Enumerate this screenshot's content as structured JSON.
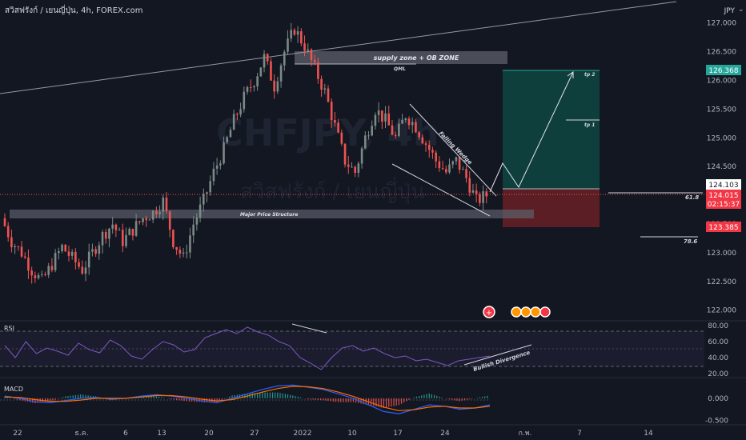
{
  "header": {
    "symbol_line": "สวิสฟรังก์ / เยนญี่ปุ่น, 4h, FOREX.com",
    "currency": "JPY"
  },
  "watermark": {
    "ticker": "CHFJPY, 4h",
    "name": "สวิสฟรังก์ / เยนญี่ปุ่น"
  },
  "annotations": {
    "supply_zone": "supply zone + OB ZONE",
    "qml": "QML",
    "major_structure": "Major Price Structure",
    "falling_wedge": "Falling Wedge",
    "tp2": "tp 2",
    "tp1": "tp 1",
    "fib_618": "61.8",
    "fib_786": "78.6",
    "bullish_divergence": "Bullish Divergence"
  },
  "price_labels": {
    "target": "126.368",
    "entry": "124.103",
    "current": "124.015",
    "countdown": "02:15:37",
    "stop": "123.385"
  },
  "colors": {
    "background": "#131722",
    "bull_candle": "#7a8a86",
    "bear_candle": "#ef5350",
    "target_zone": "#0f3f3c",
    "stop_zone": "#5a1e24",
    "target_label": "#26a69a",
    "stop_label": "#f23645",
    "rsi_line": "#7e57c2",
    "macd_line": "#2962ff",
    "signal_line": "#ff6d00"
  },
  "chart_data": {
    "type": "candlestick",
    "title": "สวิสฟรังก์ / เยนญี่ปุ่น, 4h, FOREX.com",
    "y_ticks": [
      "127.000",
      "126.500",
      "126.000",
      "125.500",
      "125.000",
      "124.500",
      "124.000",
      "123.500",
      "123.000",
      "122.500",
      "122.000"
    ],
    "ylim": [
      121.8,
      127.4
    ],
    "x_ticks": [
      "22",
      "ธ.ค.",
      "6",
      "13",
      "20",
      "27",
      "2022",
      "10",
      "17",
      "24",
      "ก.พ.",
      "7",
      "14"
    ],
    "price_path": [
      123.6,
      123.2,
      123.0,
      122.7,
      122.5,
      122.8,
      123.1,
      122.9,
      122.7,
      123.0,
      123.3,
      123.5,
      123.2,
      123.4,
      123.6,
      123.7,
      123.9,
      123.2,
      122.9,
      123.5,
      123.9,
      124.4,
      124.8,
      125.3,
      125.7,
      126.0,
      126.4,
      125.9,
      126.5,
      126.9,
      126.6,
      126.2,
      125.8,
      125.2,
      124.6,
      124.4,
      125.0,
      125.5,
      125.3,
      125.0,
      125.4,
      125.2,
      124.9,
      124.6,
      124.4,
      124.6,
      124.3,
      123.9,
      124.0
    ],
    "rsi": {
      "label": "RSI",
      "ticks": [
        "80.00",
        "60.00",
        "40.00",
        "20.00"
      ],
      "ylim": [
        15,
        85
      ],
      "values": [
        55,
        40,
        60,
        45,
        52,
        48,
        43,
        58,
        50,
        46,
        62,
        55,
        42,
        38,
        50,
        60,
        56,
        47,
        50,
        65,
        70,
        75,
        70,
        78,
        72,
        68,
        60,
        55,
        40,
        33,
        25,
        40,
        52,
        55,
        48,
        52,
        45,
        40,
        42,
        36,
        38,
        34,
        30,
        36,
        38,
        40,
        42
      ]
    },
    "macd": {
      "label": "MACD",
      "ticks": [
        "0.000",
        "-0.500"
      ],
      "ylim": [
        -0.6,
        0.45
      ],
      "macd": [
        0.05,
        0.0,
        -0.08,
        -0.1,
        -0.05,
        0.0,
        0.02,
        -0.02,
        0.0,
        0.05,
        0.08,
        0.05,
        0.0,
        -0.06,
        -0.1,
        0.0,
        0.1,
        0.2,
        0.28,
        0.3,
        0.25,
        0.2,
        0.1,
        0.0,
        -0.15,
        -0.3,
        -0.35,
        -0.25,
        -0.15,
        -0.18,
        -0.25,
        -0.22,
        -0.15
      ],
      "signal": [
        0.03,
        0.02,
        -0.03,
        -0.07,
        -0.07,
        -0.04,
        0.0,
        0.0,
        0.0,
        0.03,
        0.06,
        0.06,
        0.03,
        -0.02,
        -0.06,
        -0.03,
        0.05,
        0.14,
        0.22,
        0.27,
        0.26,
        0.22,
        0.14,
        0.04,
        -0.08,
        -0.2,
        -0.28,
        -0.26,
        -0.2,
        -0.18,
        -0.22,
        -0.22,
        -0.18
      ]
    }
  }
}
